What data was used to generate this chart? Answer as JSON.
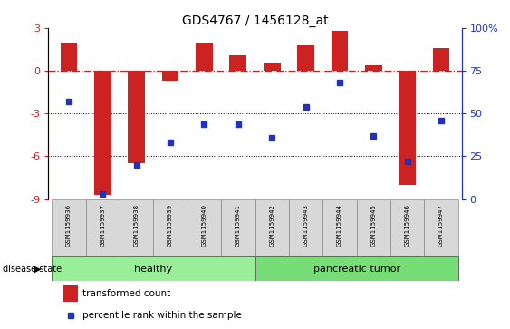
{
  "title": "GDS4767 / 1456128_at",
  "samples": [
    "GSM1159936",
    "GSM1159937",
    "GSM1159938",
    "GSM1159939",
    "GSM1159940",
    "GSM1159941",
    "GSM1159942",
    "GSM1159943",
    "GSM1159944",
    "GSM1159945",
    "GSM1159946",
    "GSM1159947"
  ],
  "transformed_count": [
    2.0,
    -8.7,
    -6.5,
    -0.7,
    2.0,
    1.1,
    0.6,
    1.8,
    2.8,
    0.4,
    -8.0,
    1.6
  ],
  "percentile_rank": [
    57,
    3,
    20,
    33,
    44,
    44,
    36,
    54,
    68,
    37,
    22,
    46
  ],
  "ylim_left": [
    -9,
    3
  ],
  "ylim_right": [
    0,
    100
  ],
  "yticks_left": [
    -9,
    -6,
    -3,
    0,
    3
  ],
  "yticks_right": [
    0,
    25,
    50,
    75,
    100
  ],
  "ytick_labels_right": [
    "0",
    "25",
    "50",
    "75",
    "100%"
  ],
  "bar_color": "#cc2222",
  "dot_color": "#2233bb",
  "healthy_color": "#99ee99",
  "tumor_color": "#77dd77",
  "legend_bar_label": "transformed count",
  "legend_dot_label": "percentile rank within the sample",
  "disease_label": "disease state",
  "healthy_label": "healthy",
  "tumor_label": "pancreatic tumor",
  "n_healthy": 6,
  "n_tumor": 6
}
